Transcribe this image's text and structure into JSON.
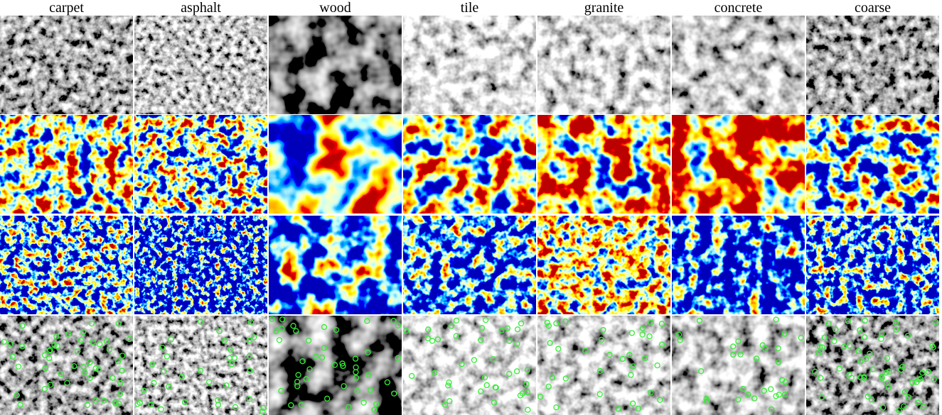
{
  "columns": [
    "carpet",
    "asphalt",
    "wood",
    "tile",
    "granite",
    "concrete",
    "coarse"
  ]
}
